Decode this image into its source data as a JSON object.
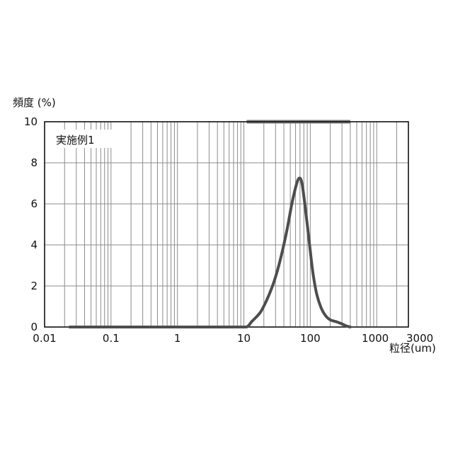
{
  "chart_data": {
    "type": "line",
    "title": "実施例1",
    "ylabel": "頻度 (%)",
    "xlabel": "粒径(um)",
    "x_scale": "log",
    "xlim": [
      0.01,
      3000
    ],
    "ylim": [
      0,
      10
    ],
    "x_ticks": [
      0.01,
      0.1,
      1,
      10,
      100,
      1000,
      3000
    ],
    "x_tick_labels": [
      "0.01",
      "0.1",
      "1",
      "10",
      "100",
      "1000",
      "3000"
    ],
    "y_ticks": [
      0,
      2,
      4,
      6,
      8,
      10
    ],
    "y_tick_labels": [
      "0",
      "2",
      "4",
      "6",
      "8",
      "10"
    ],
    "grid": true,
    "measurement_range": [
      0.02,
      2000
    ],
    "highlight_range": [
      11,
      400
    ],
    "series": [
      {
        "color": "#4d4d4d",
        "x": [
          0.024,
          0.05,
          0.1,
          1,
          5,
          10,
          11,
          12,
          13,
          15,
          18,
          22,
          27,
          32,
          38,
          45,
          52,
          58,
          64,
          68,
          72,
          76,
          82,
          90,
          100,
          110,
          125,
          145,
          170,
          200,
          250,
          300,
          350,
          400
        ],
        "y": [
          0,
          0,
          0,
          0,
          0,
          0,
          0,
          0.1,
          0.25,
          0.45,
          0.75,
          1.3,
          2.0,
          2.75,
          3.7,
          4.8,
          5.9,
          6.6,
          7.1,
          7.25,
          7.2,
          6.9,
          6.1,
          5.0,
          3.7,
          2.6,
          1.6,
          0.95,
          0.55,
          0.35,
          0.25,
          0.15,
          0.05,
          0
        ]
      }
    ]
  }
}
